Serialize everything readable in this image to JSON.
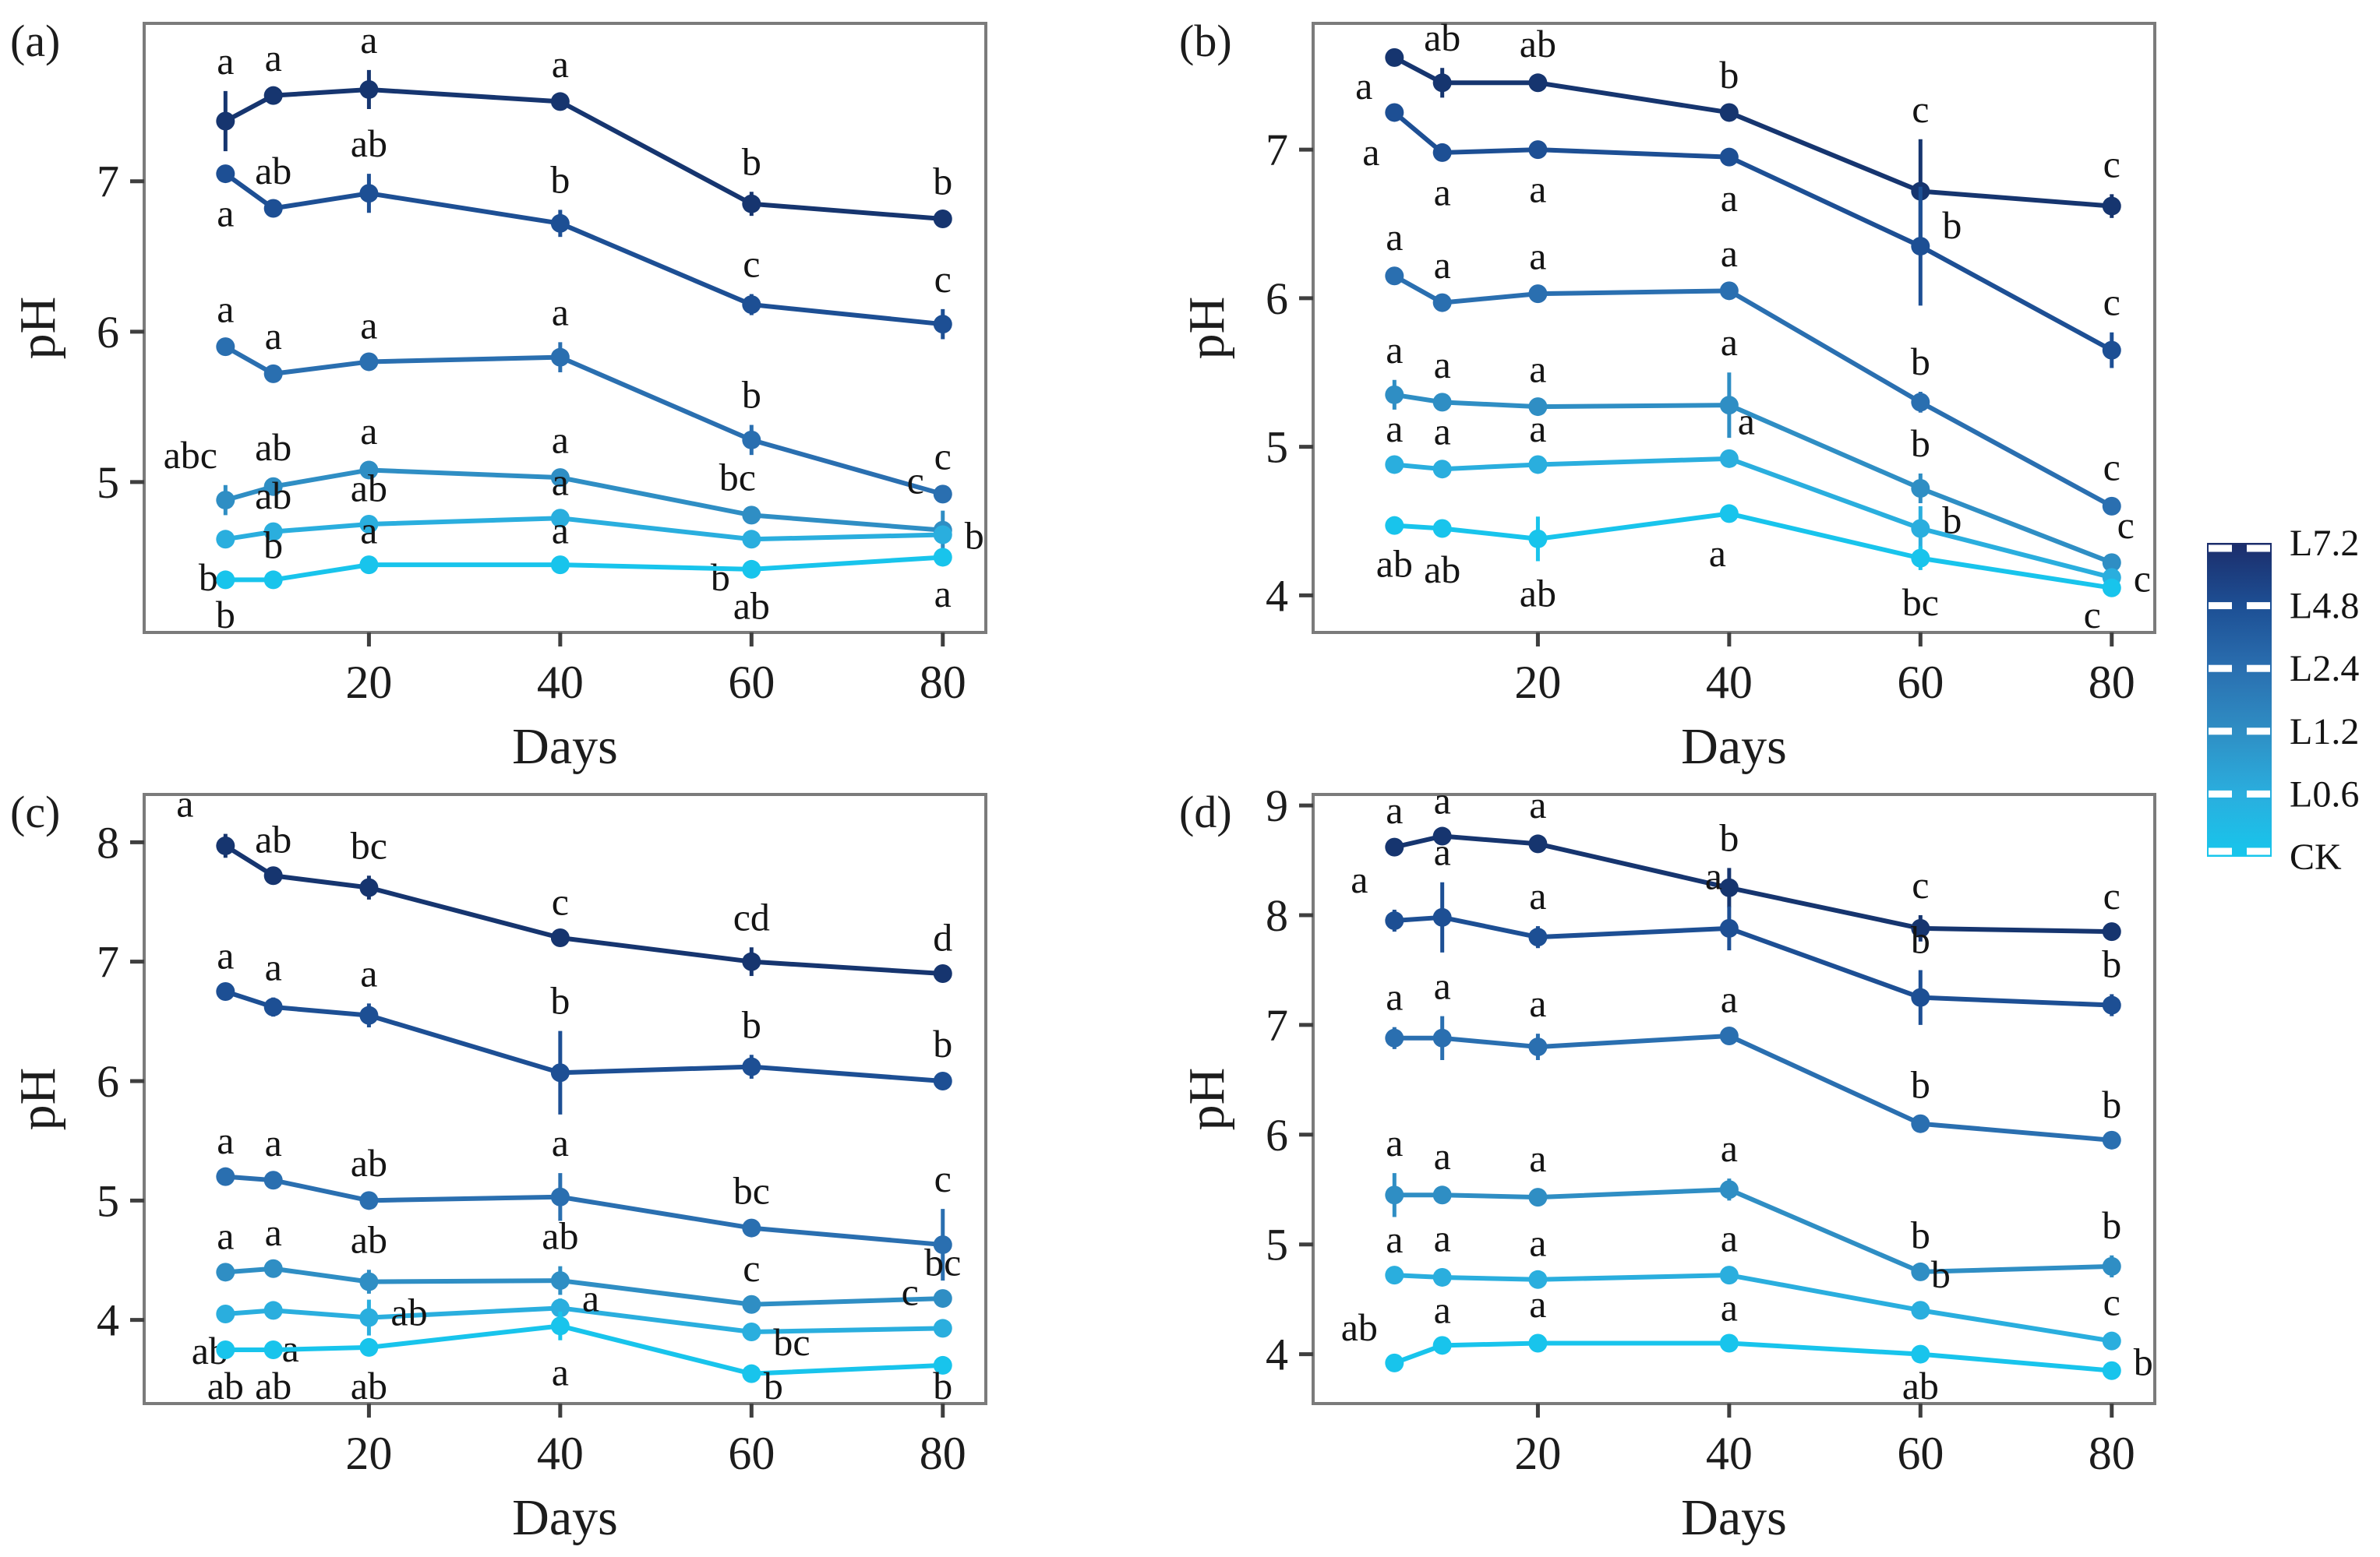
{
  "page": {
    "background": "#ffffff"
  },
  "chart_data": {
    "type": "line",
    "x_label": "Days",
    "y_label": "pH",
    "x": [
      5,
      10,
      20,
      40,
      60,
      80
    ],
    "x_ticks": [
      20,
      40,
      60,
      80
    ],
    "panels": [
      {
        "tag": "(a)",
        "ylim": [
          4.0,
          8.05
        ],
        "yticks": [
          5,
          6,
          7
        ],
        "series": [
          {
            "name": "L7.2",
            "color": "#16356f",
            "values": [
              7.4,
              7.57,
              7.61,
              7.53,
              6.85,
              6.75
            ],
            "errors": [
              0.2,
              0.05,
              0.13,
              0.05,
              0.08,
              0.05
            ],
            "sig": [
              "a",
              "a",
              "a",
              "a",
              "b",
              "b"
            ],
            "sig_pos": [
              "t",
              "t",
              "t",
              "t",
              "t",
              "t"
            ]
          },
          {
            "name": "L4.8",
            "color": "#1d4f94",
            "values": [
              7.05,
              6.82,
              6.92,
              6.72,
              6.18,
              6.05
            ],
            "errors": [
              0.05,
              0.05,
              0.13,
              0.09,
              0.07,
              0.1
            ],
            "sig": [
              "a",
              "ab",
              "ab",
              "b",
              "c",
              "c"
            ],
            "sig_pos": [
              "b",
              "t",
              "t",
              "t",
              "t",
              "t"
            ]
          },
          {
            "name": "L2.4",
            "color": "#2a6fb0",
            "values": [
              5.9,
              5.72,
              5.8,
              5.83,
              5.28,
              4.92
            ],
            "errors": [
              0.05,
              0.05,
              0.04,
              0.1,
              0.1,
              0.05
            ],
            "sig": [
              "a",
              "a",
              "a",
              "a",
              "b",
              "c"
            ],
            "sig_pos": [
              "t",
              "t",
              "t",
              "t",
              "t",
              "t"
            ]
          },
          {
            "name": "L1.2",
            "color": "#2f8ec4",
            "values": [
              4.88,
              4.97,
              5.08,
              5.03,
              4.78,
              4.68
            ],
            "errors": [
              0.1,
              0.06,
              0.06,
              0.05,
              0.05,
              0.13
            ],
            "sig": [
              "abc",
              "ab",
              "a",
              "a",
              "bc",
              "c"
            ],
            "sig_pos": [
              "t:-45",
              "t",
              "t",
              "t",
              "t:-18",
              "t:-35"
            ]
          },
          {
            "name": "L0.6",
            "color": "#2aaede",
            "values": [
              4.62,
              4.67,
              4.72,
              4.76,
              4.62,
              4.65
            ],
            "errors": [
              0.04,
              0.04,
              0.04,
              0.04,
              0.04,
              0.04
            ],
            "sig": [
              "b",
              "ab",
              "ab",
              "a",
              "b",
              "b"
            ],
            "sig_pos": [
              "b:-22",
              "t",
              "t",
              "t",
              "b:-40",
              "r"
            ]
          },
          {
            "name": "CK",
            "color": "#18c4ec",
            "values": [
              4.35,
              4.35,
              4.45,
              4.45,
              4.42,
              4.5
            ],
            "errors": [
              0.03,
              0.03,
              0.03,
              0.03,
              0.03,
              0.03
            ],
            "sig": [
              "b",
              "b",
              "a",
              "a",
              "ab",
              "a"
            ],
            "sig_pos": [
              "b",
              "t",
              "t",
              "t",
              "b",
              "b"
            ]
          }
        ]
      },
      {
        "tag": "(b)",
        "ylim": [
          3.75,
          7.85
        ],
        "yticks": [
          4,
          5,
          6,
          7
        ],
        "series": [
          {
            "name": "L7.2",
            "color": "#16356f",
            "values": [
              7.62,
              7.45,
              7.45,
              7.25,
              6.72,
              6.62
            ],
            "errors": [
              0.05,
              0.1,
              0.06,
              0.05,
              0.35,
              0.08
            ],
            "sig": [
              "a",
              "ab",
              "ab",
              "b",
              "c",
              "c"
            ],
            "sig_pos": [
              "l:0:35",
              "t",
              "t",
              "t",
              "t",
              "t"
            ]
          },
          {
            "name": "L4.8",
            "color": "#1d4f94",
            "values": [
              7.25,
              6.98,
              7.0,
              6.95,
              6.35,
              5.65
            ],
            "errors": [
              0.05,
              0.05,
              0.05,
              0.06,
              0.4,
              0.12
            ],
            "sig": [
              "a",
              "a",
              "a",
              "a",
              "b",
              "c"
            ],
            "sig_pos": [
              "b:-30",
              "b",
              "b",
              "b",
              "r:0:-28",
              "t"
            ]
          },
          {
            "name": "L2.4",
            "color": "#2a6fb0",
            "values": [
              6.15,
              5.97,
              6.03,
              6.05,
              5.3,
              4.6
            ],
            "errors": [
              0.06,
              0.05,
              0.05,
              0.05,
              0.07,
              0.06
            ],
            "sig": [
              "a",
              "a",
              "a",
              "a",
              "b",
              "c"
            ],
            "sig_pos": [
              "t",
              "t",
              "t",
              "t",
              "t",
              "t"
            ]
          },
          {
            "name": "L1.2",
            "color": "#2f8ec4",
            "values": [
              5.35,
              5.3,
              5.27,
              5.28,
              4.72,
              4.22
            ],
            "errors": [
              0.1,
              0.05,
              0.05,
              0.22,
              0.1,
              0.05
            ],
            "sig": [
              "a",
              "a",
              "a",
              "a",
              "b",
              "c"
            ],
            "sig_pos": [
              "t",
              "t",
              "t",
              "t",
              "t",
              "t:18"
            ]
          },
          {
            "name": "L0.6",
            "color": "#2aaede",
            "values": [
              4.88,
              4.85,
              4.88,
              4.92,
              4.45,
              4.12
            ],
            "errors": [
              0.04,
              0.05,
              0.04,
              0.05,
              0.15,
              0.05
            ],
            "sig": [
              "a",
              "a",
              "a",
              "a",
              "b",
              "c"
            ],
            "sig_pos": [
              "t",
              "t",
              "t",
              "t:22",
              "r:0:-12",
              "r"
            ]
          },
          {
            "name": "CK",
            "color": "#18c4ec",
            "values": [
              4.47,
              4.45,
              4.38,
              4.55,
              4.25,
              4.05
            ],
            "errors": [
              0.04,
              0.06,
              0.15,
              0.05,
              0.08,
              0.06
            ],
            "sig": [
              "ab",
              "ab",
              "ab",
              "a",
              "bc",
              "c"
            ],
            "sig_pos": [
              "b",
              "b",
              "b",
              "b:-15",
              "b",
              "b:-25"
            ]
          }
        ]
      },
      {
        "tag": "(c)",
        "ylim": [
          3.3,
          8.4
        ],
        "yticks": [
          4,
          5,
          6,
          7,
          8
        ],
        "series": [
          {
            "name": "L7.2",
            "color": "#16356f",
            "values": [
              7.97,
              7.72,
              7.62,
              7.2,
              7.0,
              6.9
            ],
            "errors": [
              0.1,
              0.05,
              0.1,
              0.05,
              0.12,
              0.05
            ],
            "sig": [
              "a",
              "ab",
              "bc",
              "c",
              "cd",
              "d"
            ],
            "sig_pos": [
              "t:-52",
              "t",
              "t",
              "t",
              "t",
              "t"
            ]
          },
          {
            "name": "L4.8",
            "color": "#1d4f94",
            "values": [
              6.75,
              6.62,
              6.55,
              6.07,
              6.12,
              6.0
            ],
            "errors": [
              0.05,
              0.08,
              0.1,
              0.35,
              0.1,
              0.06
            ],
            "sig": [
              "a",
              "a",
              "a",
              "b",
              "b",
              "b"
            ],
            "sig_pos": [
              "t",
              "t",
              "t",
              "t",
              "t",
              "t"
            ]
          },
          {
            "name": "L2.4",
            "color": "#2a6fb0",
            "values": [
              5.2,
              5.17,
              5.0,
              5.03,
              4.77,
              4.63
            ],
            "errors": [
              0.05,
              0.06,
              0.06,
              0.2,
              0.06,
              0.3
            ],
            "sig": [
              "a",
              "a",
              "ab",
              "a",
              "bc",
              "c"
            ],
            "sig_pos": [
              "t",
              "t",
              "t",
              "t",
              "t",
              "t"
            ]
          },
          {
            "name": "L1.2",
            "color": "#2f8ec4",
            "values": [
              4.4,
              4.43,
              4.32,
              4.33,
              4.13,
              4.18
            ],
            "errors": [
              0.05,
              0.05,
              0.1,
              0.12,
              0.05,
              0.05
            ],
            "sig": [
              "a",
              "a",
              "ab",
              "ab",
              "c",
              "bc"
            ],
            "sig_pos": [
              "t",
              "t",
              "t",
              "t",
              "t",
              "t"
            ]
          },
          {
            "name": "L0.6",
            "color": "#2aaede",
            "values": [
              4.05,
              4.08,
              4.02,
              4.1,
              3.9,
              3.93
            ],
            "errors": [
              0.04,
              0.05,
              0.15,
              0.08,
              0.05,
              0.05
            ],
            "sig": [
              "ab",
              "a",
              "ab",
              "a",
              "bc",
              "c"
            ],
            "sig_pos": [
              "b:-20",
              "b:22",
              "r:0:-8",
              "r:0:-14",
              "r:0:12",
              "t:-42"
            ]
          },
          {
            "name": "CK",
            "color": "#18c4ec",
            "values": [
              3.75,
              3.75,
              3.77,
              3.95,
              3.55,
              3.62
            ],
            "errors": [
              0.04,
              0.04,
              0.06,
              0.12,
              0.05,
              0.05
            ],
            "sig": [
              "ab",
              "ab",
              "ab",
              "a",
              "b",
              "b"
            ],
            "sig_pos": [
              "b",
              "b",
              "b",
              "b",
              "b:28",
              "b"
            ]
          }
        ]
      },
      {
        "tag": "(d)",
        "ylim": [
          3.55,
          9.1
        ],
        "yticks": [
          4,
          5,
          6,
          7,
          8,
          9
        ],
        "series": [
          {
            "name": "L7.2",
            "color": "#16356f",
            "values": [
              8.62,
              8.72,
              8.65,
              8.25,
              7.88,
              7.85
            ],
            "errors": [
              0.06,
              0.05,
              0.08,
              0.18,
              0.12,
              0.05
            ],
            "sig": [
              "a",
              "a",
              "a",
              "b",
              "c",
              "c"
            ],
            "sig_pos": [
              "t",
              "t",
              "t",
              "t",
              "t",
              "t"
            ]
          },
          {
            "name": "L4.8",
            "color": "#1d4f94",
            "values": [
              7.95,
              7.98,
              7.8,
              7.88,
              7.25,
              7.18
            ],
            "errors": [
              0.1,
              0.32,
              0.1,
              0.2,
              0.25,
              0.1
            ],
            "sig": [
              "a",
              "a",
              "a",
              "a",
              "b",
              "b"
            ],
            "sig_pos": [
              "t:-45",
              "t",
              "t",
              "t:-20",
              "t",
              "t"
            ]
          },
          {
            "name": "L2.4",
            "color": "#2a6fb0",
            "values": [
              6.88,
              6.88,
              6.8,
              6.9,
              6.1,
              5.95
            ],
            "errors": [
              0.1,
              0.2,
              0.12,
              0.06,
              0.08,
              0.05
            ],
            "sig": [
              "a",
              "a",
              "a",
              "a",
              "b",
              "b"
            ],
            "sig_pos": [
              "t",
              "t",
              "t",
              "t",
              "t",
              "t"
            ]
          },
          {
            "name": "L1.2",
            "color": "#2f8ec4",
            "values": [
              5.45,
              5.45,
              5.43,
              5.5,
              4.75,
              4.8
            ],
            "errors": [
              0.2,
              0.08,
              0.08,
              0.1,
              0.06,
              0.1
            ],
            "sig": [
              "a",
              "a",
              "a",
              "a",
              "b",
              "b"
            ],
            "sig_pos": [
              "t",
              "t",
              "t",
              "t",
              "t",
              "t"
            ]
          },
          {
            "name": "L0.6",
            "color": "#2aaede",
            "values": [
              4.72,
              4.7,
              4.68,
              4.72,
              4.4,
              4.12
            ],
            "errors": [
              0.05,
              0.08,
              0.06,
              0.06,
              0.05,
              0.08
            ],
            "sig": [
              "a",
              "a",
              "a",
              "a",
              "b",
              "c"
            ],
            "sig_pos": [
              "t",
              "t",
              "t",
              "t",
              "t:26",
              "t"
            ]
          },
          {
            "name": "CK",
            "color": "#18c4ec",
            "values": [
              3.92,
              4.08,
              4.1,
              4.1,
              4.0,
              3.85
            ],
            "errors": [
              0.05,
              0.05,
              0.08,
              0.05,
              0.05,
              0.08
            ],
            "sig": [
              "ab",
              "a",
              "a",
              "a",
              "ab",
              "b"
            ],
            "sig_pos": [
              "t:-45",
              "t",
              "t",
              "t",
              "b",
              "r:0:-12"
            ]
          }
        ]
      }
    ]
  },
  "legend": {
    "entries": [
      {
        "label": "L7.2",
        "color": "#1c2d6b"
      },
      {
        "label": "L4.8",
        "color": "#1d4f94"
      },
      {
        "label": "L2.4",
        "color": "#2a6fb0"
      },
      {
        "label": "L1.2",
        "color": "#2f8ec4"
      },
      {
        "label": "L0.6",
        "color": "#2aaede"
      },
      {
        "label": "CK",
        "color": "#17c6ec"
      }
    ]
  }
}
